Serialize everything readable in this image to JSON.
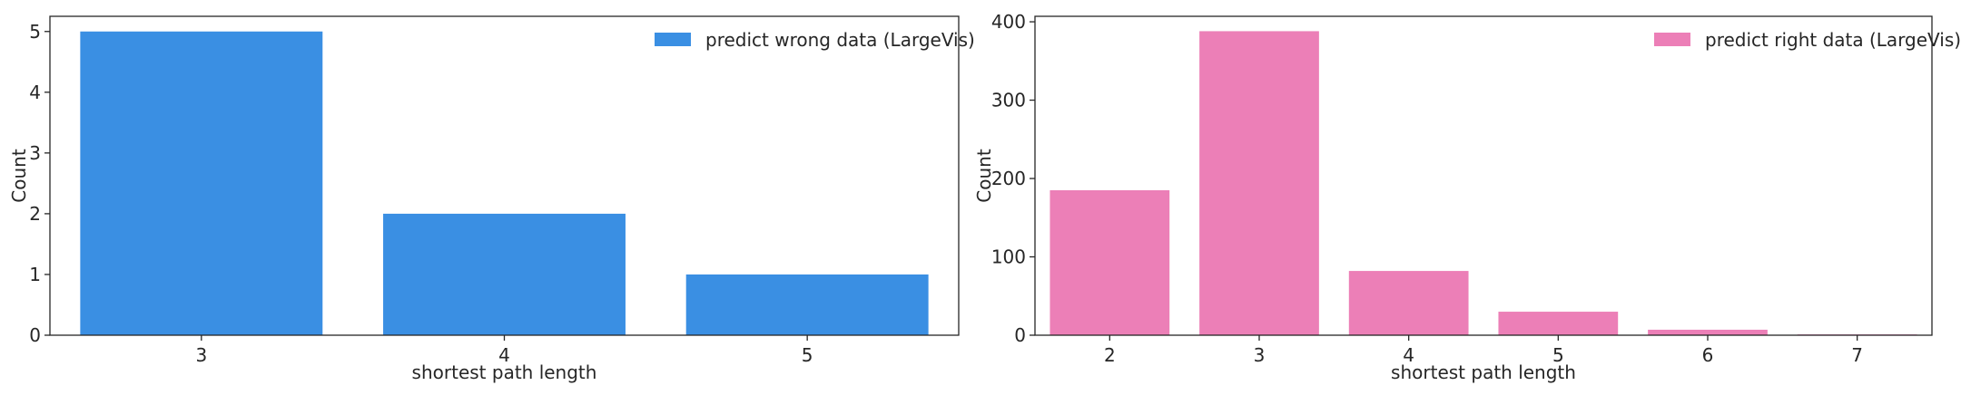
{
  "chart_data": [
    {
      "type": "bar",
      "categories": [
        "3",
        "4",
        "5"
      ],
      "series": [
        {
          "name": "predict wrong data (LargeVis)",
          "values": [
            5,
            2,
            1
          ],
          "color": "#3a8fe3"
        }
      ],
      "title": "",
      "xlabel": "shortest path length",
      "ylabel": "Count",
      "ylim": [
        0,
        5.25
      ],
      "yticks": [
        0,
        1,
        2,
        3,
        4,
        5
      ],
      "grid": false,
      "legend_position": "top-right"
    },
    {
      "type": "bar",
      "categories": [
        "2",
        "3",
        "4",
        "5",
        "6",
        "7"
      ],
      "series": [
        {
          "name": "predict right data (LargeVis)",
          "values": [
            185,
            388,
            82,
            30,
            7,
            1
          ],
          "color": "#ec7fb7"
        }
      ],
      "title": "",
      "xlabel": "shortest path length",
      "ylabel": "Count",
      "ylim": [
        0,
        407
      ],
      "yticks": [
        0,
        100,
        200,
        300,
        400
      ],
      "grid": false,
      "legend_position": "top-right"
    }
  ]
}
